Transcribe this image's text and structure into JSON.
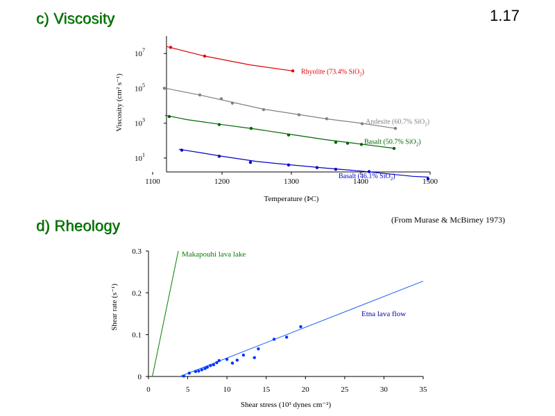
{
  "slide": {
    "number": "1.17",
    "heading_c": "c) Viscosity",
    "heading_d": "d) Rheology",
    "credit": "(From Murase & McBirney 1973)"
  },
  "chart_data": [
    {
      "type": "line",
      "title": "",
      "xlabel": "Temperature (ÞC)",
      "ylabel": "Viscosity (cm² s⁻¹)",
      "yscale": "log",
      "xlim": [
        1100,
        1500
      ],
      "ylim_log10": [
        0.2,
        8.0
      ],
      "x_ticks": [
        "1100",
        "1200",
        "1300",
        "1400",
        "1500"
      ],
      "y_ticks": [
        {
          "base": "10",
          "exp": "1"
        },
        {
          "base": "10",
          "exp": "3"
        },
        {
          "base": "10",
          "exp": "5"
        },
        {
          "base": "10",
          "exp": "7"
        }
      ],
      "grid": false,
      "series": [
        {
          "name": "Rhyolite (73.4% SiO₂)",
          "label": {
            "text": "Rhyolite  (73.4% SiO",
            "sub": "2",
            "tail": ")"
          },
          "color": "#e00000",
          "points": [
            [
              1126,
              7.35
            ],
            [
              1175,
              6.85
            ],
            [
              1302,
              6.0
            ]
          ],
          "curve": [
            [
              1120,
              7.4
            ],
            [
              1175,
              6.85
            ],
            [
              1240,
              6.35
            ],
            [
              1302,
              6.0
            ]
          ]
        },
        {
          "name": "Andesite (60.7% SiO₂)",
          "label": {
            "text": "Andesite  (60.7% SiO",
            "sub": "2",
            "tail": ")"
          },
          "color": "#808080",
          "points": [
            [
              1117,
              5.0
            ],
            [
              1168,
              4.62
            ],
            [
              1199,
              4.4
            ],
            [
              1215,
              4.15
            ],
            [
              1260,
              3.78
            ],
            [
              1311,
              3.48
            ],
            [
              1351,
              3.25
            ],
            [
              1402,
              2.97
            ],
            [
              1450,
              2.7
            ]
          ],
          "curve": [
            [
              1115,
              5.05
            ],
            [
              1125,
              4.95
            ],
            [
              1170,
              4.6
            ],
            [
              1215,
              4.2
            ],
            [
              1260,
              3.8
            ],
            [
              1310,
              3.5
            ],
            [
              1350,
              3.25
            ],
            [
              1400,
              3.0
            ],
            [
              1450,
              2.7
            ]
          ]
        },
        {
          "name": "Basalt (50.7% SiO₂)",
          "label": {
            "text": "Basalt  (50.7% SiO",
            "sub": "2",
            "tail": ")"
          },
          "color": "#006400",
          "points": [
            [
              1124,
              3.38
            ],
            [
              1196,
              2.92
            ],
            [
              1242,
              2.7
            ],
            [
              1296,
              2.32
            ],
            [
              1364,
              1.9
            ],
            [
              1381,
              1.85
            ],
            [
              1401,
              1.78
            ],
            [
              1448,
              1.55
            ]
          ],
          "curve": [
            [
              1118,
              3.45
            ],
            [
              1150,
              3.2
            ],
            [
              1200,
              2.92
            ],
            [
              1250,
              2.65
            ],
            [
              1300,
              2.35
            ],
            [
              1350,
              2.05
            ],
            [
              1400,
              1.8
            ],
            [
              1450,
              1.55
            ]
          ]
        },
        {
          "name": "Basalt (46.1% SiO₂)",
          "label": {
            "text": "Basalt  (46.1% SiO",
            "sub": "2",
            "tail": ")"
          },
          "color": "#0000cc",
          "points": [
            [
              1142,
              1.45
            ],
            [
              1196,
              1.1
            ],
            [
              1241,
              0.75
            ],
            [
              1296,
              0.6
            ],
            [
              1337,
              0.45
            ],
            [
              1364,
              0.35
            ],
            [
              1412,
              0.22
            ],
            [
              1497,
              -0.2
            ]
          ],
          "curve": [
            [
              1138,
              1.5
            ],
            [
              1170,
              1.3
            ],
            [
              1200,
              1.1
            ],
            [
              1250,
              0.8
            ],
            [
              1300,
              0.6
            ],
            [
              1350,
              0.42
            ],
            [
              1400,
              0.25
            ],
            [
              1450,
              0.05
            ],
            [
              1475,
              -0.05
            ],
            [
              1498,
              -0.1
            ]
          ]
        }
      ]
    },
    {
      "type": "scatter",
      "title": "",
      "xlabel": "Shear stress (10³ dynes cm⁻²)",
      "ylabel": "Shear rate (s⁻¹)",
      "xlim": [
        0,
        35
      ],
      "ylim": [
        0,
        0.3
      ],
      "x_ticks": [
        "0",
        "5",
        "10",
        "15",
        "20",
        "25",
        "30",
        "35"
      ],
      "y_ticks": [
        "0",
        "0.1",
        "0.2",
        "0.3"
      ],
      "grid": false,
      "lines": [
        {
          "name": "Makapouhi lava lake",
          "color": "#008000",
          "from": [
            0.5,
            0.0
          ],
          "to": [
            3.8,
            0.3
          ]
        },
        {
          "name": "Etna lava flow",
          "color": "#1a5cff",
          "from": [
            4.0,
            0.0
          ],
          "to": [
            35.0,
            0.228
          ]
        }
      ],
      "points_color": "#0033ff",
      "points": [
        [
          4.5,
          0.001
        ],
        [
          5.2,
          0.008
        ],
        [
          6.0,
          0.012
        ],
        [
          6.4,
          0.013
        ],
        [
          6.8,
          0.016
        ],
        [
          7.2,
          0.019
        ],
        [
          7.5,
          0.022
        ],
        [
          7.9,
          0.026
        ],
        [
          8.3,
          0.028
        ],
        [
          8.7,
          0.033
        ],
        [
          9.0,
          0.038
        ],
        [
          10.0,
          0.041
        ],
        [
          10.7,
          0.032
        ],
        [
          11.3,
          0.039
        ],
        [
          12.1,
          0.051
        ],
        [
          13.5,
          0.045
        ],
        [
          14.0,
          0.066
        ],
        [
          16.0,
          0.089
        ],
        [
          17.6,
          0.094
        ],
        [
          19.4,
          0.119
        ]
      ]
    }
  ]
}
